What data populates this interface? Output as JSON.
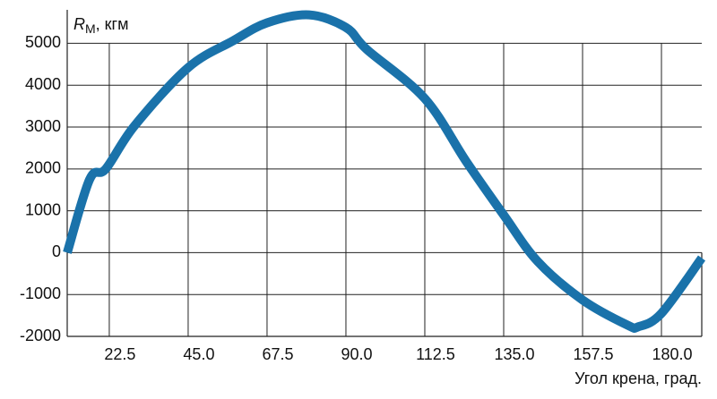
{
  "chart_data": {
    "type": "line",
    "y_label": "R",
    "y_label_subscript": "М",
    "y_label_unit": ", кгм",
    "x_label": "Угол крена, град.",
    "x": [
      10.5,
      16.9,
      21.5,
      29.7,
      45,
      57.8,
      67.5,
      79.5,
      90,
      96,
      112.5,
      124.3,
      135,
      144.7,
      157.5,
      170.3,
      173.4,
      180,
      191.5
    ],
    "series": [
      {
        "color": "#1a72aa",
        "values": [
          0,
          1750,
          2000,
          3030,
          4420,
          5060,
          5490,
          5680,
          5380,
          4850,
          3680,
          2180,
          900,
          -210,
          -1130,
          -1730,
          -1770,
          -1450,
          -130
        ]
      }
    ],
    "xlim": [
      10.5,
      191.5
    ],
    "ylim": [
      -2000,
      5800
    ],
    "xticks": [
      22.5,
      {
        "value": 45,
        "label": "45.0"
      },
      67.5,
      {
        "value": 90,
        "label": "90.0"
      },
      112.5,
      {
        "value": 135,
        "label": "135.0"
      },
      157.5,
      {
        "value": 180,
        "label": "180.0"
      }
    ],
    "yticks": [
      -2000,
      -1000,
      0,
      1000,
      2000,
      3000,
      4000,
      5000
    ],
    "grid": true
  }
}
